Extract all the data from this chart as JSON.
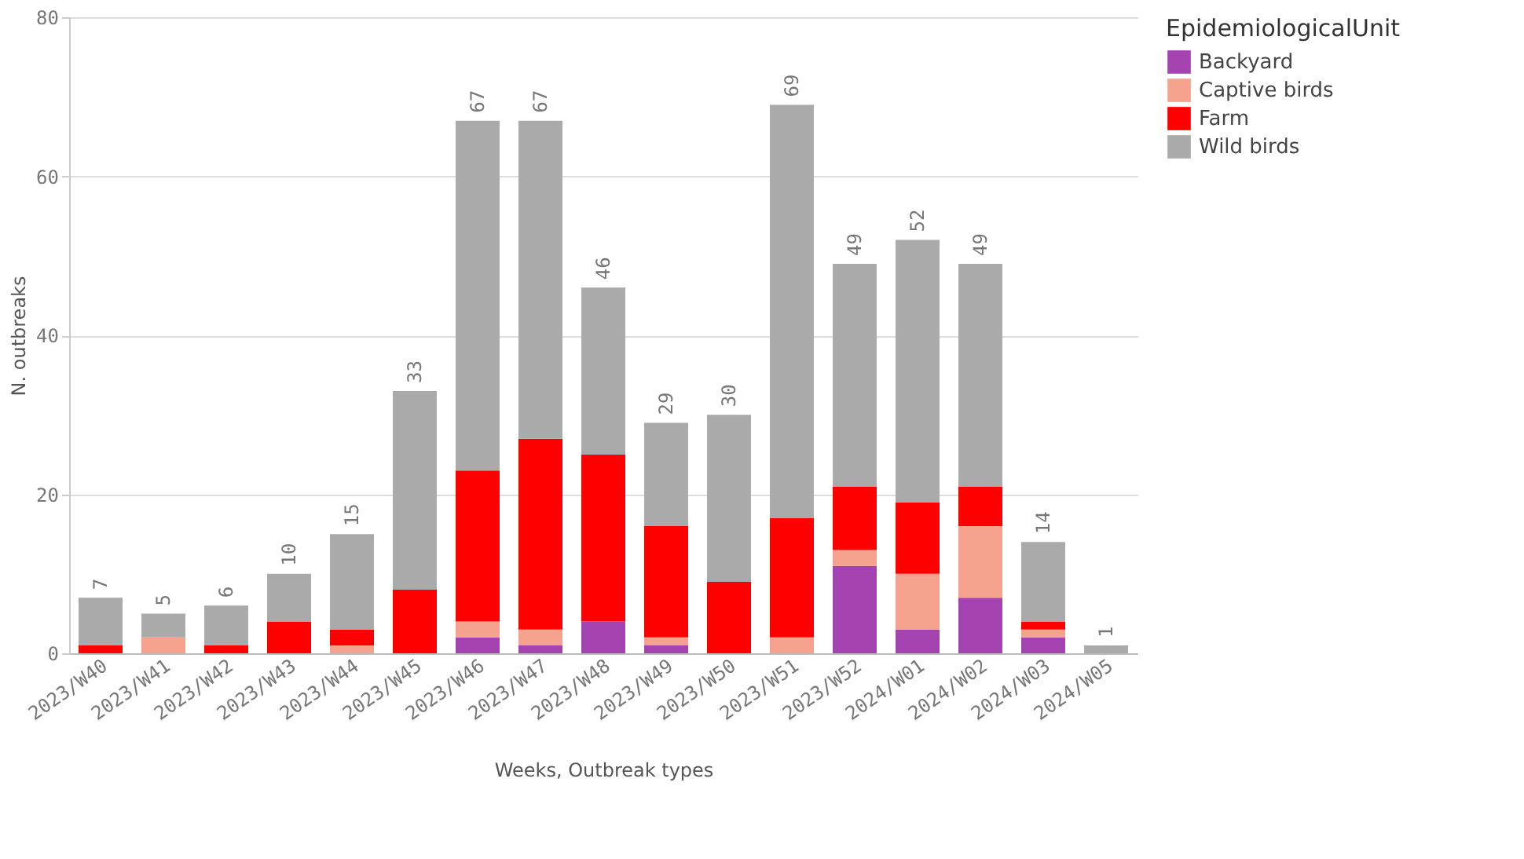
{
  "chart_data": {
    "type": "bar",
    "stacked": true,
    "xlabel": "Weeks, Outbreak types",
    "ylabel": "N. outbreaks",
    "legend_title": "EpidemiologicalUnit",
    "categories": [
      "2023/W40",
      "2023/W41",
      "2023/W42",
      "2023/W43",
      "2023/W44",
      "2023/W45",
      "2023/W46",
      "2023/W47",
      "2023/W48",
      "2023/W49",
      "2023/W50",
      "2023/W51",
      "2023/W52",
      "2024/W01",
      "2024/W02",
      "2024/W03",
      "2024/W05"
    ],
    "series": [
      {
        "name": "Backyard",
        "color": "#a543b0",
        "values": [
          0,
          0,
          0,
          0,
          0,
          0,
          2,
          1,
          4,
          1,
          0,
          0,
          11,
          3,
          7,
          2,
          0
        ]
      },
      {
        "name": "Captive birds",
        "color": "#f5a38e",
        "values": [
          0,
          2,
          0,
          0,
          1,
          0,
          2,
          2,
          0,
          1,
          0,
          2,
          2,
          7,
          9,
          1,
          0
        ]
      },
      {
        "name": "Farm",
        "color": "#ff0000",
        "values": [
          1,
          0,
          1,
          4,
          2,
          8,
          19,
          24,
          21,
          14,
          9,
          15,
          8,
          9,
          5,
          1,
          0
        ]
      },
      {
        "name": "Wild birds",
        "color": "#aaaaaa",
        "values": [
          6,
          3,
          5,
          6,
          12,
          25,
          44,
          40,
          21,
          13,
          21,
          52,
          28,
          33,
          28,
          10,
          1
        ]
      }
    ],
    "totals": [
      "7",
      "5",
      "6",
      "10",
      "15",
      "33",
      "67",
      "67",
      "46",
      "29",
      "30",
      "69",
      "49",
      "52",
      "49",
      "14",
      "1"
    ],
    "ylim": [
      0,
      80
    ],
    "yticks": [
      0,
      20,
      40,
      60,
      80
    ],
    "grid": "y",
    "legend": "top right"
  }
}
